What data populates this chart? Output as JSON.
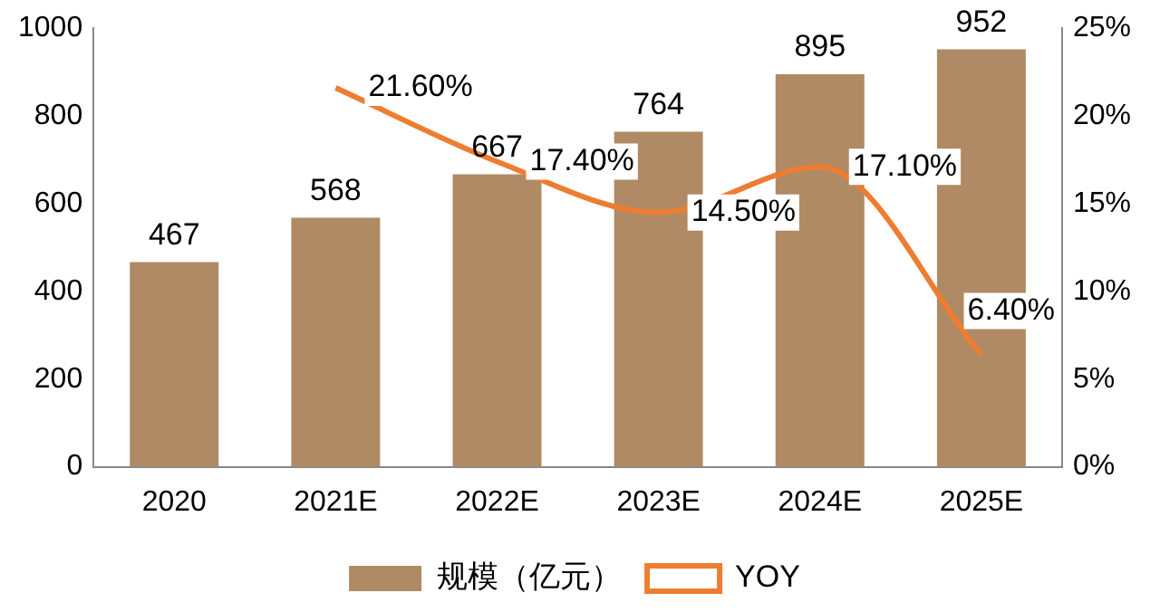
{
  "chart_data": {
    "type": "bar",
    "categories": [
      "2020",
      "2021E",
      "2022E",
      "2023E",
      "2024E",
      "2025E"
    ],
    "series": [
      {
        "name": "规模（亿元）",
        "type": "bar",
        "color": "#b08a64",
        "values": [
          467,
          568,
          667,
          764,
          895,
          952
        ],
        "value_labels": [
          "467",
          "568",
          "667",
          "764",
          "895",
          "952"
        ]
      },
      {
        "name": "YOY",
        "type": "line",
        "axis": "y2",
        "color": "#ed7d31",
        "values": [
          null,
          21.6,
          17.4,
          14.5,
          17.1,
          6.4
        ],
        "value_labels": [
          null,
          "21.60%",
          "17.40%",
          "14.50%",
          "17.10%",
          "6.40%"
        ]
      }
    ],
    "ylim": [
      0,
      1000
    ],
    "yticks": [
      0,
      200,
      400,
      600,
      800,
      1000
    ],
    "y2lim": [
      0,
      25
    ],
    "y2ticks": [
      {
        "value": 0,
        "label": "0%"
      },
      {
        "value": 5,
        "label": "5%"
      },
      {
        "value": 10,
        "label": "10%"
      },
      {
        "value": 15,
        "label": "15%"
      },
      {
        "value": 20,
        "label": "20%"
      },
      {
        "value": 25,
        "label": "25%"
      }
    ],
    "grid": false,
    "legend": "bottom",
    "marker": "none"
  }
}
